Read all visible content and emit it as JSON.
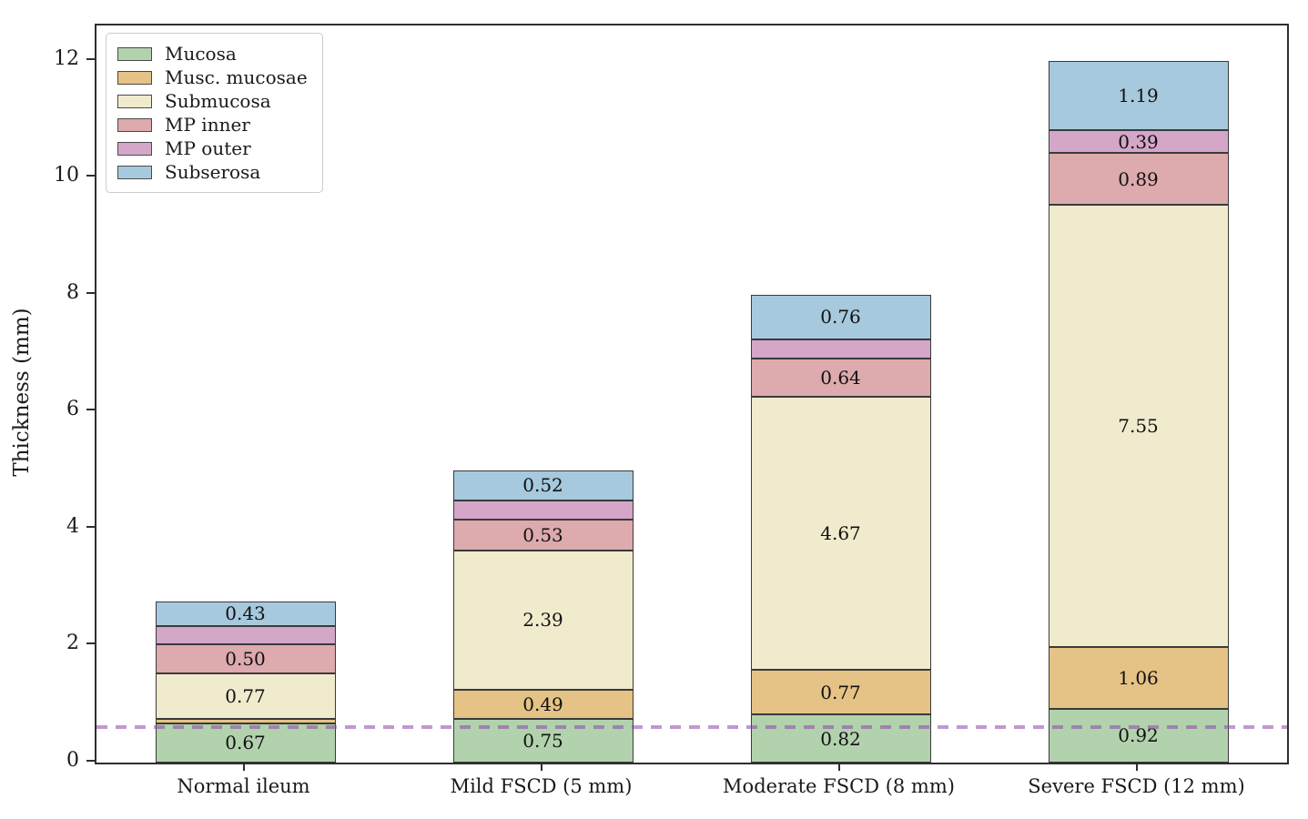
{
  "chart_data": {
    "type": "bar",
    "stacked": true,
    "title": "",
    "xlabel": "",
    "ylabel": "Thickness (mm)",
    "ylim": [
      0,
      12.6
    ],
    "yticks": [
      0,
      2,
      4,
      6,
      8,
      10,
      12
    ],
    "grid": false,
    "legend_position": "upper left",
    "categories": [
      "Normal ileum",
      "Mild FSCD (5 mm)",
      "Moderate FSCD (8 mm)",
      "Severe FSCD (12 mm)"
    ],
    "bar_totals": [
      2.76,
      5.0,
      8.0,
      12.0
    ],
    "series": [
      {
        "name": "Mucosa",
        "color": "#b2d2ad",
        "values": [
          0.67,
          0.75,
          0.82,
          0.92
        ],
        "labels": [
          "0.67",
          "0.75",
          "0.82",
          "0.92"
        ]
      },
      {
        "name": "Musc. mucosae",
        "color": "#e5c286",
        "values": [
          0.08,
          0.49,
          0.77,
          1.06
        ],
        "labels": [
          "",
          "0.49",
          "0.77",
          "1.06"
        ]
      },
      {
        "name": "Submucosa",
        "color": "#f1ebce",
        "values": [
          0.77,
          2.39,
          4.67,
          7.55
        ],
        "labels": [
          "0.77",
          "2.39",
          "4.67",
          "7.55"
        ]
      },
      {
        "name": "MP inner",
        "color": "#ddaaad",
        "values": [
          0.5,
          0.53,
          0.64,
          0.89
        ],
        "labels": [
          "0.50",
          "0.53",
          "0.64",
          "0.89"
        ]
      },
      {
        "name": "MP outer",
        "color": "#d4a6c8",
        "values": [
          0.31,
          0.32,
          0.34,
          0.39
        ],
        "labels": [
          "",
          "",
          "",
          "0.39"
        ]
      },
      {
        "name": "Subserosa",
        "color": "#a6c9dd",
        "values": [
          0.43,
          0.52,
          0.76,
          1.19
        ],
        "labels": [
          "0.43",
          "0.52",
          "0.76",
          "1.19"
        ]
      }
    ],
    "reference_line": {
      "value": 0.6,
      "style": "dashed",
      "color": "rgba(142,68,173,0.55)"
    }
  }
}
